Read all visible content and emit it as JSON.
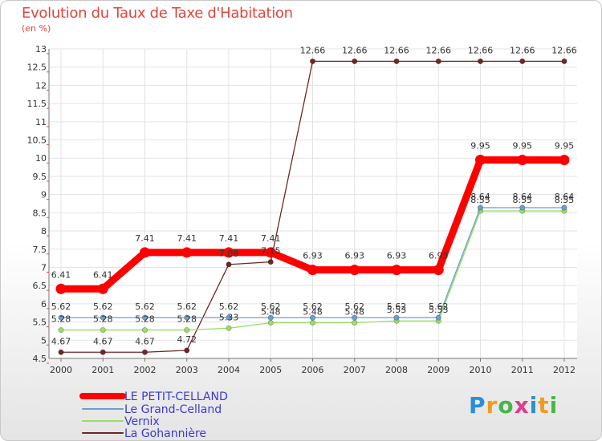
{
  "chart_data": {
    "type": "line",
    "title": "Evolution du Taux de Taxe d'Habitation",
    "subtitle": "(en %)",
    "x": [
      "2000",
      "2001",
      "2002",
      "2003",
      "2004",
      "2005",
      "2006",
      "2007",
      "2008",
      "2009",
      "2010",
      "2011",
      "2012"
    ],
    "ylim": [
      4.5,
      13
    ],
    "yticks": [
      "4.5",
      "5",
      "5.5",
      "6",
      "6.5",
      "7",
      "7.5",
      "8",
      "8.5",
      "9",
      "9.5",
      "10",
      "10.5",
      "11",
      "11.5",
      "12",
      "12.5",
      "13"
    ],
    "series": [
      {
        "name": "LE PETIT-CELLAND",
        "color": "#ff0000",
        "values": [
          6.41,
          6.41,
          7.41,
          7.41,
          7.41,
          7.41,
          6.93,
          6.93,
          6.93,
          6.93,
          9.95,
          9.95,
          9.95
        ],
        "labels": [
          "6.41",
          "6.41",
          "7.41",
          "7.41",
          "7.41",
          "7.41",
          "6.93",
          "6.93",
          "6.93",
          "6.93",
          "9.95",
          "9.95",
          "9.95"
        ]
      },
      {
        "name": "Le Grand-Celland",
        "color": "#6b9ed0",
        "values": [
          5.62,
          5.62,
          5.62,
          5.62,
          5.62,
          5.62,
          5.62,
          5.62,
          5.62,
          5.62,
          8.64,
          8.64,
          8.64
        ],
        "labels": [
          "5.62",
          "5.62",
          "5.62",
          "5.62",
          "5.62",
          "5.62",
          "5.62",
          "5.62",
          "5.62",
          "5.62",
          "8.64",
          "8.64",
          "8.64"
        ]
      },
      {
        "name": "Vernix",
        "color": "#99dd66",
        "values": [
          5.28,
          5.28,
          5.28,
          5.28,
          5.33,
          5.48,
          5.48,
          5.48,
          5.53,
          5.53,
          8.55,
          8.55,
          8.55
        ],
        "labels": [
          "5.28",
          "5.28",
          "5.28",
          "5.28",
          "5.33",
          "5.48",
          "5.48",
          "5.48",
          "5.53",
          "5.53",
          "8.55",
          "8.55",
          "8.55"
        ]
      },
      {
        "name": "La Gohannière",
        "color": "#702626",
        "values": [
          4.67,
          4.67,
          4.67,
          4.72,
          7.08,
          7.15,
          12.66,
          12.66,
          12.66,
          12.66,
          12.66,
          12.66,
          12.66
        ],
        "labels": [
          "4.67",
          "4.67",
          "4.67",
          "4.72",
          "7.08",
          "7.15",
          "12.66",
          "12.66",
          "12.66",
          "12.66",
          "12.66",
          "12.66",
          "12.66"
        ]
      }
    ]
  },
  "legend": [
    "LE PETIT-CELLAND",
    "Le Grand-Celland",
    "Vernix",
    "La Gohannière"
  ],
  "logo": {
    "letters": [
      "P",
      "r",
      "o",
      "x",
      "i",
      "t",
      "i"
    ],
    "colors": [
      "#2a8fd8",
      "#f39a1e",
      "#49b548",
      "#e03c8a",
      "#2a8fd8",
      "#f39a1e",
      "#49b548"
    ]
  }
}
